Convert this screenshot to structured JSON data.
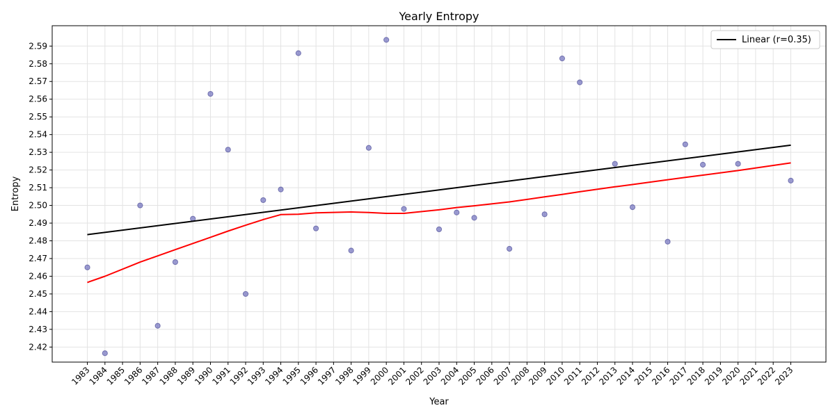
{
  "chart_data": {
    "type": "scatter",
    "title": "Yearly Entropy",
    "xlabel": "Year",
    "ylabel": "Entropy",
    "xlim": [
      1981,
      2025
    ],
    "ylim": [
      2.4115,
      2.6015
    ],
    "grid": true,
    "legend_position": "top-right",
    "x_ticks": [
      1983,
      1984,
      1985,
      1986,
      1987,
      1988,
      1989,
      1990,
      1991,
      1992,
      1993,
      1994,
      1995,
      1996,
      1997,
      1998,
      1999,
      2000,
      2001,
      2002,
      2003,
      2004,
      2005,
      2006,
      2007,
      2008,
      2009,
      2010,
      2011,
      2012,
      2013,
      2014,
      2015,
      2016,
      2017,
      2018,
      2019,
      2020,
      2021,
      2022,
      2023
    ],
    "y_ticks": [
      2.42,
      2.43,
      2.44,
      2.45,
      2.46,
      2.47,
      2.48,
      2.49,
      2.5,
      2.51,
      2.52,
      2.53,
      2.54,
      2.55,
      2.56,
      2.57,
      2.58,
      2.59
    ],
    "points": {
      "color": "#5a5ab4",
      "x": [
        1983,
        1984,
        1986,
        1987,
        1988,
        1989,
        1990,
        1991,
        1992,
        1993,
        1994,
        1995,
        1996,
        1998,
        1999,
        2000,
        2001,
        2003,
        2004,
        2005,
        2007,
        2009,
        2010,
        2011,
        2013,
        2014,
        2016,
        2017,
        2018,
        2020,
        2023
      ],
      "y": [
        2.465,
        2.4165,
        2.5,
        2.432,
        2.468,
        2.4925,
        2.563,
        2.5315,
        2.45,
        2.503,
        2.509,
        2.586,
        2.487,
        2.4745,
        2.5325,
        2.5935,
        2.498,
        2.4865,
        2.496,
        2.493,
        2.4755,
        2.495,
        2.583,
        2.5695,
        2.5235,
        2.499,
        2.4795,
        2.5345,
        2.523,
        2.5235,
        2.514
      ]
    },
    "series": [
      {
        "name": "Linear (r=0.35)",
        "style": "line",
        "color": "#000000",
        "x": [
          1983,
          2023
        ],
        "y": [
          2.4835,
          2.534
        ]
      },
      {
        "name": "",
        "style": "line",
        "color": "#ff0000",
        "x": [
          1983,
          1984,
          1986,
          1987,
          1988,
          1989,
          1990,
          1991,
          1992,
          1993,
          1994,
          1995,
          1996,
          1998,
          1999,
          2000,
          2001,
          2003,
          2004,
          2005,
          2007,
          2009,
          2010,
          2011,
          2013,
          2014,
          2016,
          2017,
          2018,
          2020,
          2023
        ],
        "y": [
          2.4565,
          2.46,
          2.468,
          2.4715,
          2.475,
          2.4785,
          2.482,
          2.4855,
          2.4888,
          2.492,
          2.4948,
          2.495,
          2.4958,
          2.4963,
          2.496,
          2.4955,
          2.4955,
          2.4975,
          2.4988,
          2.4998,
          2.502,
          2.5048,
          2.5062,
          2.5077,
          2.5105,
          2.5118,
          2.5145,
          2.5158,
          2.5171,
          2.5197,
          2.524
        ]
      }
    ]
  }
}
